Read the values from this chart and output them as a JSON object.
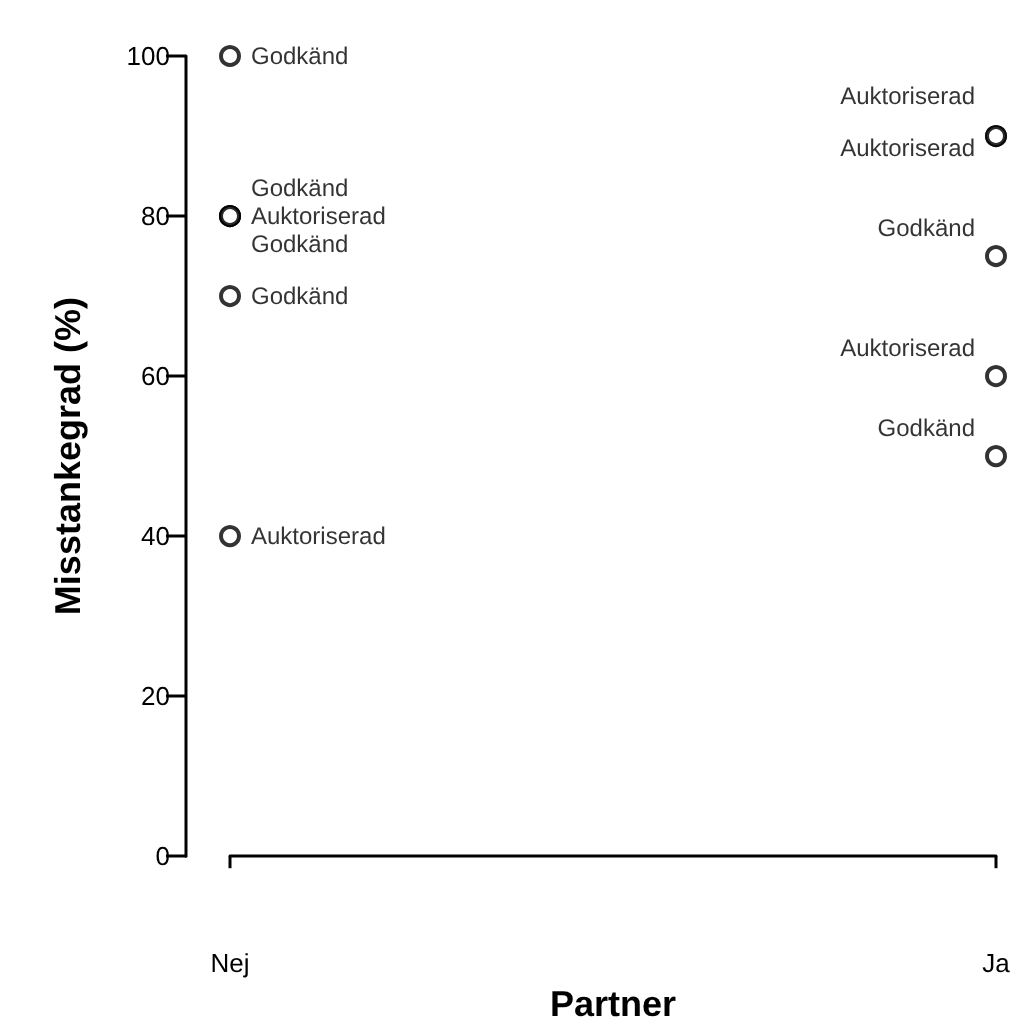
{
  "chart_data": {
    "type": "scatter",
    "xlabel": "Partner",
    "ylabel": "Misstankegrad (%)",
    "categories": [
      "Nej",
      "Ja"
    ],
    "ylim": [
      0,
      100
    ],
    "yticks": [
      0,
      20,
      40,
      60,
      80,
      100
    ],
    "grid": false,
    "marker": "circle",
    "series": [
      {
        "color": "#000000",
        "x": [
          "Nej",
          "Nej",
          "Nej",
          "Nej",
          "Nej",
          "Nej",
          "Ja",
          "Ja",
          "Ja",
          "Ja",
          "Ja"
        ],
        "values": [
          100,
          80,
          80,
          80,
          70,
          40,
          90,
          90,
          75,
          60,
          50
        ],
        "value_labels": [
          "Godkänd",
          "Godkänd",
          "Auktoriserad",
          "Godkänd",
          "Godkänd",
          "Auktoriserad",
          "Auktoriserad",
          "Auktoriserad",
          "Godkänd",
          "Auktoriserad",
          "Godkänd"
        ]
      }
    ]
  }
}
